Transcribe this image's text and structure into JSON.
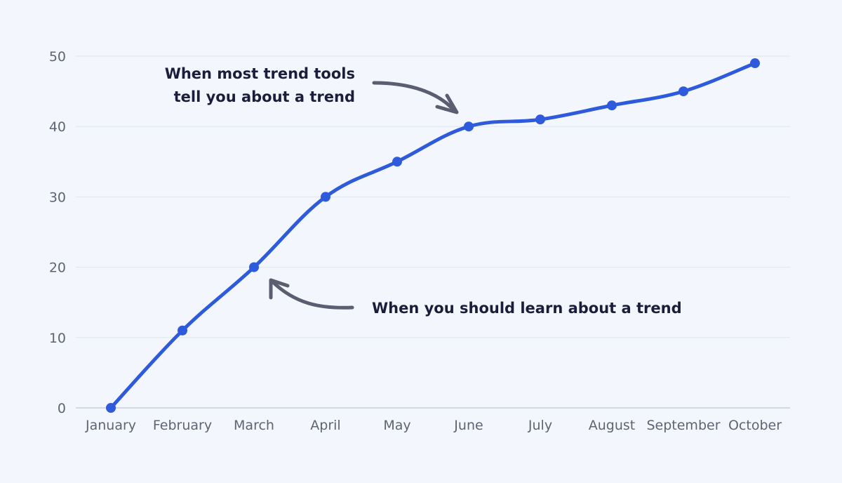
{
  "chart_data": {
    "type": "line",
    "categories": [
      "January",
      "February",
      "March",
      "April",
      "May",
      "June",
      "July",
      "August",
      "September",
      "October"
    ],
    "values": [
      0,
      11,
      20,
      30,
      35,
      40,
      41,
      43,
      45,
      49
    ],
    "ylim": [
      0,
      50
    ],
    "yticks": [
      "0",
      "10",
      "20",
      "30",
      "40",
      "50"
    ],
    "grid": true,
    "colors": {
      "line": "#2e5bdb",
      "grid": "#dfe5ee",
      "axis": "#c7cfdb",
      "tick_text": "#5f6470",
      "annotation_text": "#1b1d3a",
      "arrow": "#5b5d70",
      "background": "#f3f7fd"
    },
    "annotations": [
      {
        "target": "June",
        "lines": [
          "When most trend tools",
          "tell you about a trend"
        ]
      },
      {
        "target": "March",
        "lines": [
          "When you should learn about a trend"
        ]
      }
    ]
  }
}
